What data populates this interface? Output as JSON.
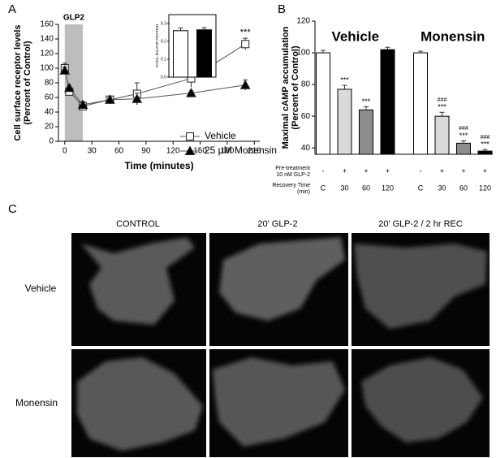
{
  "panel_labels": [
    "A",
    "B",
    "C"
  ],
  "chart_data": [
    {
      "type": "line",
      "shade": {
        "label": "GLP2",
        "range": [
          0,
          20
        ],
        "color": "#bdbdbd"
      },
      "xlabel": "Time (minutes)",
      "ylabel": [
        "Cell surface receptor levels",
        "(Percent of Control)"
      ],
      "x": [
        0,
        5,
        20,
        50,
        80,
        140,
        200
      ],
      "xlim": [
        -7,
        216
      ],
      "xticks": [
        0,
        30,
        60,
        90,
        120,
        150,
        180,
        210
      ],
      "ylim": [
        0,
        160
      ],
      "yticks": [
        0,
        20,
        40,
        60,
        80,
        100,
        120,
        140,
        160
      ],
      "legend": "lower right",
      "series": [
        {
          "name": "Vehicle",
          "color": "#555555",
          "marker": "square",
          "marker_fill": "#ffffff",
          "values": [
            100,
            68,
            48,
            57,
            65,
            86,
            133
          ],
          "errors": [
            7,
            5,
            5,
            4,
            15,
            12,
            8
          ],
          "annotations": [
            null,
            null,
            null,
            null,
            null,
            "*",
            "***"
          ]
        },
        {
          "name": "25 μM Monensin",
          "color": "#555555",
          "marker": "triangle",
          "marker_fill": "#000000",
          "values": [
            97,
            73,
            50,
            57,
            58,
            66,
            77
          ],
          "errors": [
            5,
            3,
            4,
            3,
            8,
            3,
            7
          ],
          "annotations": [
            null,
            null,
            null,
            null,
            null,
            null,
            null
          ]
        }
      ]
    },
    {
      "type": "bar",
      "ylabel": "TOTAL hGLP2R PROTEIN",
      "categories": [
        null,
        null
      ],
      "values": [
        0.26,
        0.265
      ],
      "errors": [
        0.015,
        0.012
      ],
      "colors": [
        "#ffffff",
        "#000000"
      ],
      "ylim": [
        0,
        0.35
      ],
      "yticks": [
        {
          "value": 0,
          "label": "0.0"
        },
        0.1,
        0.2,
        0.3
      ]
    },
    {
      "type": "grouped-bar",
      "ylabel": [
        "Maximal cAMP accumulation",
        "(Percent of Control)"
      ],
      "ylim": [
        36,
        120
      ],
      "yticks": [
        40,
        60,
        80,
        100,
        120
      ],
      "row_labels": {
        "pretreatment": [
          "Pre-treatment",
          "10 nM GLP-2"
        ],
        "recovery": [
          "Recovery Time",
          "(min)"
        ]
      },
      "pretreatment": [
        "-",
        "+",
        "+",
        "+"
      ],
      "categories": [
        "C",
        "30",
        "60",
        "120"
      ],
      "colors": [
        "#ffffff",
        "#d9d9d9",
        "#8c8c8c",
        "#000000"
      ],
      "groups": [
        {
          "name": "Vehicle",
          "values": [
            100,
            77,
            64,
            102
          ],
          "errors": [
            1.5,
            2.5,
            2,
            1.5
          ],
          "annotations": [
            null,
            "***",
            "***",
            null
          ],
          "hash_annotations": [
            null,
            null,
            null,
            null
          ]
        },
        {
          "name": "Monensin",
          "values": [
            100,
            60,
            43,
            38
          ],
          "errors": [
            1,
            2.5,
            1.5,
            1
          ],
          "annotations": [
            null,
            "***",
            "***",
            "***"
          ],
          "hash_annotations": [
            null,
            "###",
            "###",
            "###"
          ]
        }
      ]
    }
  ],
  "micrographs": {
    "columns": [
      "CONTROL",
      "20' GLP-2",
      "20' GLP-2 / 2 hr REC"
    ],
    "rows": [
      "Vehicle",
      "Monensin"
    ]
  }
}
